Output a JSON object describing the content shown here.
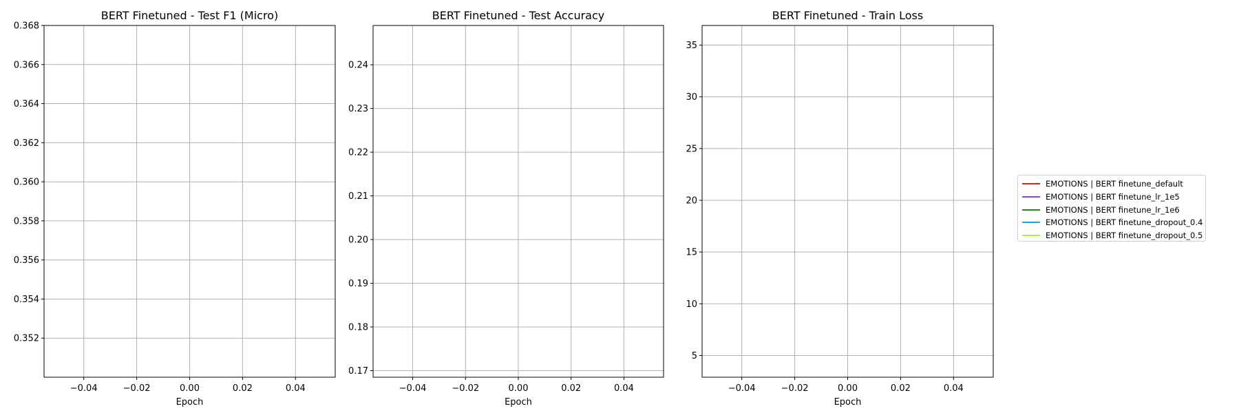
{
  "chart_data": [
    {
      "type": "line",
      "title": "BERT Finetuned - Test F1 (Micro)",
      "xlabel": "Epoch",
      "ylabel": "",
      "xlim": [
        -0.055,
        0.055
      ],
      "ylim": [
        0.35,
        0.368
      ],
      "xticks": [
        -0.04,
        -0.02,
        0.0,
        0.02,
        0.04
      ],
      "xtick_labels": [
        "−0.04",
        "−0.02",
        "0.00",
        "0.02",
        "0.04"
      ],
      "yticks": [
        0.352,
        0.354,
        0.356,
        0.358,
        0.36,
        0.362,
        0.364,
        0.366,
        0.368
      ],
      "ytick_labels": [
        "0.352",
        "0.354",
        "0.356",
        "0.358",
        "0.360",
        "0.362",
        "0.364",
        "0.366",
        "0.368"
      ],
      "grid": true,
      "series": []
    },
    {
      "type": "line",
      "title": "BERT Finetuned - Test Accuracy",
      "xlabel": "Epoch",
      "ylabel": "",
      "xlim": [
        -0.055,
        0.055
      ],
      "ylim": [
        0.1685,
        0.249
      ],
      "xticks": [
        -0.04,
        -0.02,
        0.0,
        0.02,
        0.04
      ],
      "xtick_labels": [
        "−0.04",
        "−0.02",
        "0.00",
        "0.02",
        "0.04"
      ],
      "yticks": [
        0.17,
        0.18,
        0.19,
        0.2,
        0.21,
        0.22,
        0.23,
        0.24
      ],
      "ytick_labels": [
        "0.17",
        "0.18",
        "0.19",
        "0.20",
        "0.21",
        "0.22",
        "0.23",
        "0.24"
      ],
      "grid": true,
      "series": []
    },
    {
      "type": "line",
      "title": "BERT Finetuned - Train Loss",
      "xlabel": "Epoch",
      "ylabel": "",
      "xlim": [
        -0.055,
        0.055
      ],
      "ylim": [
        2.9,
        36.9
      ],
      "xticks": [
        -0.04,
        -0.02,
        0.0,
        0.02,
        0.04
      ],
      "xtick_labels": [
        "−0.04",
        "−0.02",
        "0.00",
        "0.02",
        "0.04"
      ],
      "yticks": [
        5,
        10,
        15,
        20,
        25,
        30,
        35
      ],
      "ytick_labels": [
        "5",
        "10",
        "15",
        "20",
        "25",
        "30",
        "35"
      ],
      "grid": true,
      "series": []
    }
  ],
  "legend": {
    "placement": "right",
    "entries": [
      {
        "label": "EMOTIONS | BERT finetune_default",
        "color": "#e41a1c"
      },
      {
        "label": "EMOTIONS | BERT finetune_lr_1e5",
        "color": "#8a3ffc"
      },
      {
        "label": "EMOTIONS | BERT finetune_lr_1e6",
        "color": "#1a8a1a"
      },
      {
        "label": "EMOTIONS | BERT finetune_dropout_0.4",
        "color": "#1aa3e8"
      },
      {
        "label": "EMOTIONS | BERT finetune_dropout_0.5",
        "color": "#a6f23a"
      }
    ]
  },
  "colors": {
    "grid": "#b0b0b0",
    "axes": "#000000",
    "background": "#ffffff"
  }
}
